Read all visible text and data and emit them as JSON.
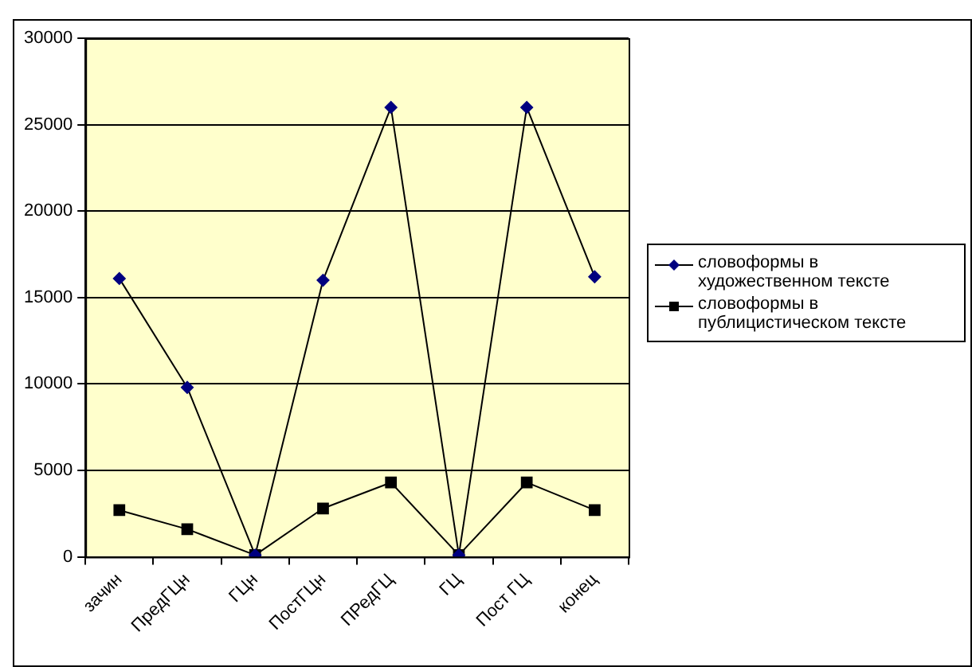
{
  "chart_data": {
    "type": "line",
    "categories": [
      "зачин",
      "ПредГЦн",
      "ГЦн",
      "ПостГЦн",
      "ПРедГЦ",
      "ГЦ",
      "Пост ГЦ",
      "конец"
    ],
    "series": [
      {
        "name": "словоформы в художественном тексте",
        "color": "#000080",
        "marker": "diamond",
        "values": [
          16100,
          9800,
          100,
          16000,
          26000,
          100,
          26000,
          16200
        ]
      },
      {
        "name": "словоформы в публицистическом тексте",
        "color": "#000000",
        "marker": "square",
        "values": [
          2700,
          1600,
          100,
          2800,
          4300,
          100,
          4300,
          2700
        ]
      }
    ],
    "ylim": [
      0,
      30000
    ],
    "yticks": [
      0,
      5000,
      10000,
      15000,
      20000,
      25000,
      30000
    ],
    "grid": "y",
    "legend": "right",
    "line_style": "solid"
  }
}
